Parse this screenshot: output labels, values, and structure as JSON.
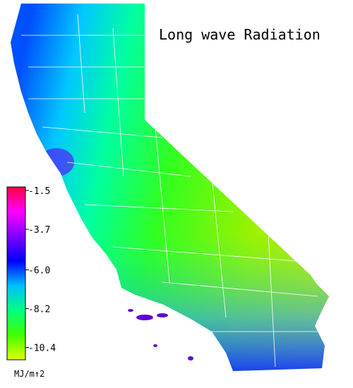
{
  "title": "Long wave Radiation",
  "colorbar": {
    "range": [
      -1.3,
      -11.1
    ],
    "ticks": [
      -1.5,
      -3.7,
      {
        "value": -6,
        "label": "-6.0"
      },
      -8.2,
      -10.4
    ],
    "colors": [
      "#ff0040",
      "#ff00ff",
      "#8000ff",
      "#0000ff",
      "#00c0ff",
      "#00ff80",
      "#40ff00",
      "#e0ff00"
    ],
    "unit": "MJ/m↑2"
  }
}
